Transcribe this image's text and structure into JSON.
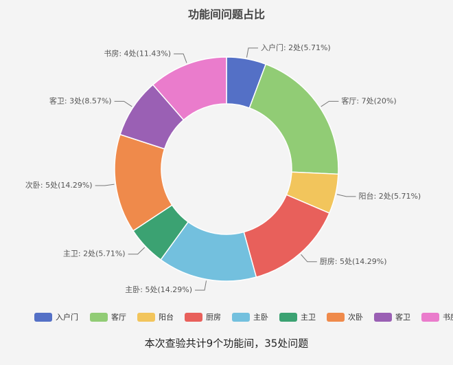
{
  "chart_data": {
    "type": "donut",
    "title": "功能间问题占比",
    "categories": [
      "入户门",
      "客厅",
      "阳台",
      "厨房",
      "主卧",
      "主卫",
      "次卧",
      "客卫",
      "书房"
    ],
    "values": [
      2,
      7,
      2,
      5,
      5,
      2,
      5,
      3,
      4
    ],
    "value_labels": [
      "入户门: 2处(5.71%)",
      "客厅: 7处(20%)",
      "阳台: 2处(5.71%)",
      "厨房: 5处(14.29%)",
      "主卧: 5处(14.29%)",
      "主卫: 2处(5.71%)",
      "次卧: 5处(14.29%)",
      "客卫: 3处(8.57%)",
      "书房: 4处(11.43%)"
    ],
    "colors": [
      "#5470c6",
      "#91cc75",
      "#f2c55c",
      "#e8605b",
      "#73c0de",
      "#3ba272",
      "#ef8a4b",
      "#9a60b4",
      "#ea7ccc"
    ],
    "legend": "bottom",
    "footer": "本次查验共计9个功能间，35处问题"
  }
}
